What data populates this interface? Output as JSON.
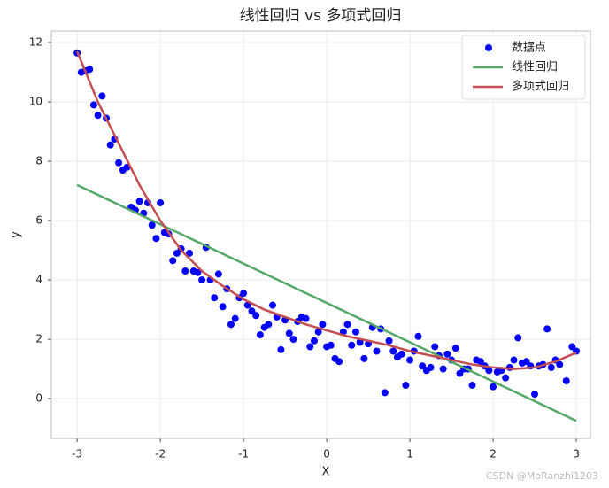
{
  "chart_data": {
    "type": "scatter",
    "title": "线性回归 vs 多项式回归",
    "xlabel": "X",
    "ylabel": "y",
    "xlim": [
      -3.31,
      3.17
    ],
    "ylim": [
      -1.34,
      12.39
    ],
    "xticks": [
      -3,
      -2,
      -1,
      0,
      1,
      2,
      3
    ],
    "yticks": [
      0,
      2,
      4,
      6,
      8,
      10,
      12
    ],
    "grid": true,
    "legend": "upper right",
    "annotation": "CSDN @MoRanzhi1203",
    "series": [
      {
        "name": "数据点",
        "type": "scatter",
        "color": "#0000ff",
        "x": [
          -3.0,
          -2.95,
          -2.9,
          -2.85,
          -2.8,
          -2.75,
          -2.7,
          -2.65,
          -2.6,
          -2.55,
          -2.5,
          -2.45,
          -2.4,
          -2.35,
          -2.3,
          -2.25,
          -2.2,
          -2.15,
          -2.1,
          -2.05,
          -2.0,
          -1.95,
          -1.9,
          -1.85,
          -1.8,
          -1.75,
          -1.7,
          -1.65,
          -1.6,
          -1.55,
          -1.5,
          -1.45,
          -1.4,
          -1.35,
          -1.3,
          -1.25,
          -1.2,
          -1.15,
          -1.1,
          -1.05,
          -1.0,
          -0.95,
          -0.9,
          -0.85,
          -0.8,
          -0.75,
          -0.7,
          -0.65,
          -0.6,
          -0.55,
          -0.5,
          -0.45,
          -0.4,
          -0.35,
          -0.3,
          -0.25,
          -0.2,
          -0.15,
          -0.1,
          -0.05,
          0.0,
          0.05,
          0.1,
          0.15,
          0.2,
          0.25,
          0.3,
          0.35,
          0.4,
          0.45,
          0.5,
          0.55,
          0.6,
          0.65,
          0.7,
          0.75,
          0.8,
          0.85,
          0.9,
          0.95,
          1.0,
          1.05,
          1.1,
          1.15,
          1.2,
          1.25,
          1.3,
          1.35,
          1.4,
          1.45,
          1.5,
          1.55,
          1.6,
          1.65,
          1.7,
          1.75,
          1.8,
          1.85,
          1.9,
          1.95,
          2.0,
          2.05,
          2.1,
          2.15,
          2.2,
          2.25,
          2.3,
          2.35,
          2.4,
          2.45,
          2.5,
          2.55,
          2.6,
          2.65,
          2.7,
          2.75,
          2.8,
          2.88,
          2.95,
          3.0
        ],
        "values": [
          11.65,
          11.0,
          11.05,
          11.1,
          9.9,
          9.55,
          10.2,
          9.45,
          8.55,
          8.75,
          7.95,
          7.7,
          7.8,
          6.45,
          6.35,
          6.65,
          6.25,
          6.6,
          5.85,
          5.4,
          6.6,
          5.6,
          5.55,
          4.65,
          4.9,
          5.05,
          4.3,
          4.9,
          4.3,
          4.25,
          4.0,
          5.1,
          4.0,
          3.4,
          4.2,
          3.1,
          3.7,
          2.5,
          2.7,
          3.4,
          3.55,
          3.15,
          2.95,
          2.8,
          2.15,
          2.4,
          2.5,
          3.15,
          2.75,
          1.65,
          2.65,
          2.2,
          2.0,
          2.6,
          2.75,
          2.7,
          1.75,
          1.95,
          2.25,
          2.5,
          1.75,
          1.8,
          1.35,
          1.25,
          2.25,
          2.5,
          1.8,
          2.25,
          1.9,
          1.35,
          1.85,
          2.4,
          1.6,
          2.35,
          0.2,
          1.95,
          1.6,
          1.4,
          1.5,
          0.45,
          1.3,
          1.6,
          2.1,
          1.1,
          0.95,
          1.05,
          1.75,
          1.45,
          1.0,
          1.5,
          1.3,
          1.7,
          0.85,
          1.0,
          1.0,
          0.45,
          1.3,
          1.25,
          1.1,
          0.95,
          0.4,
          0.9,
          0.95,
          0.7,
          1.05,
          1.3,
          2.05,
          1.2,
          1.25,
          1.1,
          0.15,
          1.1,
          1.15,
          2.35,
          1.05,
          1.3,
          1.15,
          0.6,
          1.75,
          1.6
        ]
      },
      {
        "name": "线性回归",
        "type": "line",
        "color": "#55a868",
        "x": [
          -3,
          3
        ],
        "values": [
          7.2,
          -0.75
        ]
      },
      {
        "name": "多项式回归",
        "type": "line",
        "color": "#c44e52",
        "x": [
          -3,
          -2.75,
          -2.5,
          -2.25,
          -2,
          -1.75,
          -1.5,
          -1.25,
          -1,
          -0.75,
          -0.5,
          -0.25,
          0,
          0.25,
          0.5,
          0.75,
          1,
          1.25,
          1.5,
          1.75,
          2,
          2.25,
          2.5,
          2.75,
          3
        ],
        "values": [
          11.7,
          10.0,
          8.6,
          7.2,
          6.0,
          5.0,
          4.3,
          3.8,
          3.35,
          3.0,
          2.75,
          2.5,
          2.3,
          2.1,
          1.95,
          1.8,
          1.6,
          1.45,
          1.3,
          1.15,
          1.05,
          1.0,
          1.05,
          1.25,
          1.55
        ]
      }
    ]
  }
}
